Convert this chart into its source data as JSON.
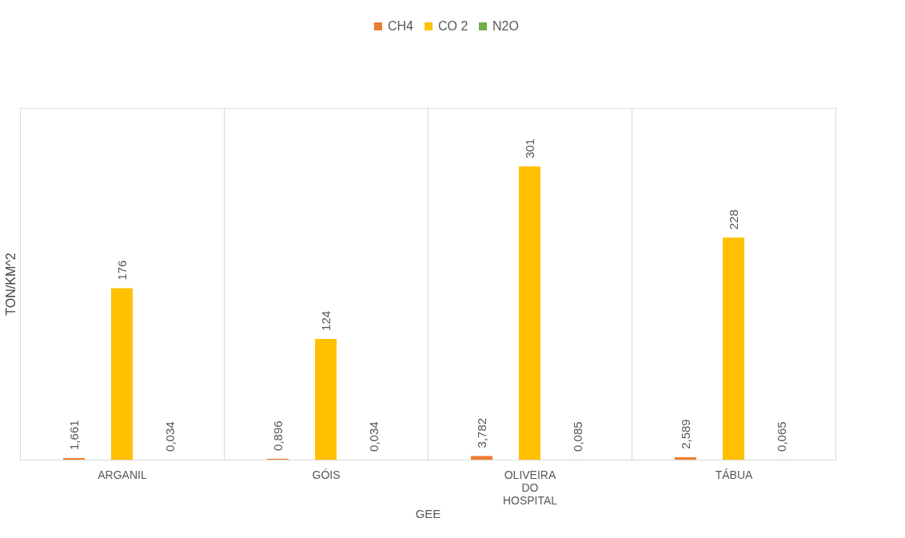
{
  "chart_data": {
    "type": "bar",
    "xlabel": "GEE",
    "ylabel": "TON/KM^2",
    "categories": [
      "ARGANIL",
      "GÓIS",
      "OLIVEIRA DO HOSPITAL",
      "TÁBUA"
    ],
    "series": [
      {
        "name": "CH4",
        "color": "#ed7d31",
        "values": [
          1.661,
          0.896,
          3.782,
          2.589
        ],
        "value_labels": [
          "1,661",
          "0,896",
          "3,782",
          "2,589"
        ]
      },
      {
        "name": "CO 2",
        "color": "#ffc000",
        "values": [
          176,
          124,
          301,
          228
        ],
        "value_labels": [
          "176",
          "124",
          "301",
          "228"
        ]
      },
      {
        "name": "N2O",
        "color": "#70ad47",
        "values": [
          0.034,
          0.034,
          0.085,
          0.065
        ],
        "value_labels": [
          "0,034",
          "0,034",
          "0,085",
          "0,065"
        ]
      }
    ],
    "grid": "x",
    "legend": "top"
  }
}
